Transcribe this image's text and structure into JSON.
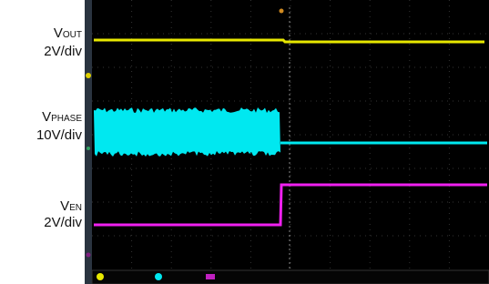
{
  "labels": [
    {
      "symbol": "V",
      "subscript": "OUT",
      "scale": "2V/div"
    },
    {
      "symbol": "V",
      "subscript": "PHASE",
      "scale": "10V/div"
    },
    {
      "symbol": "V",
      "subscript": "EN",
      "scale": "2V/div"
    }
  ]
}
